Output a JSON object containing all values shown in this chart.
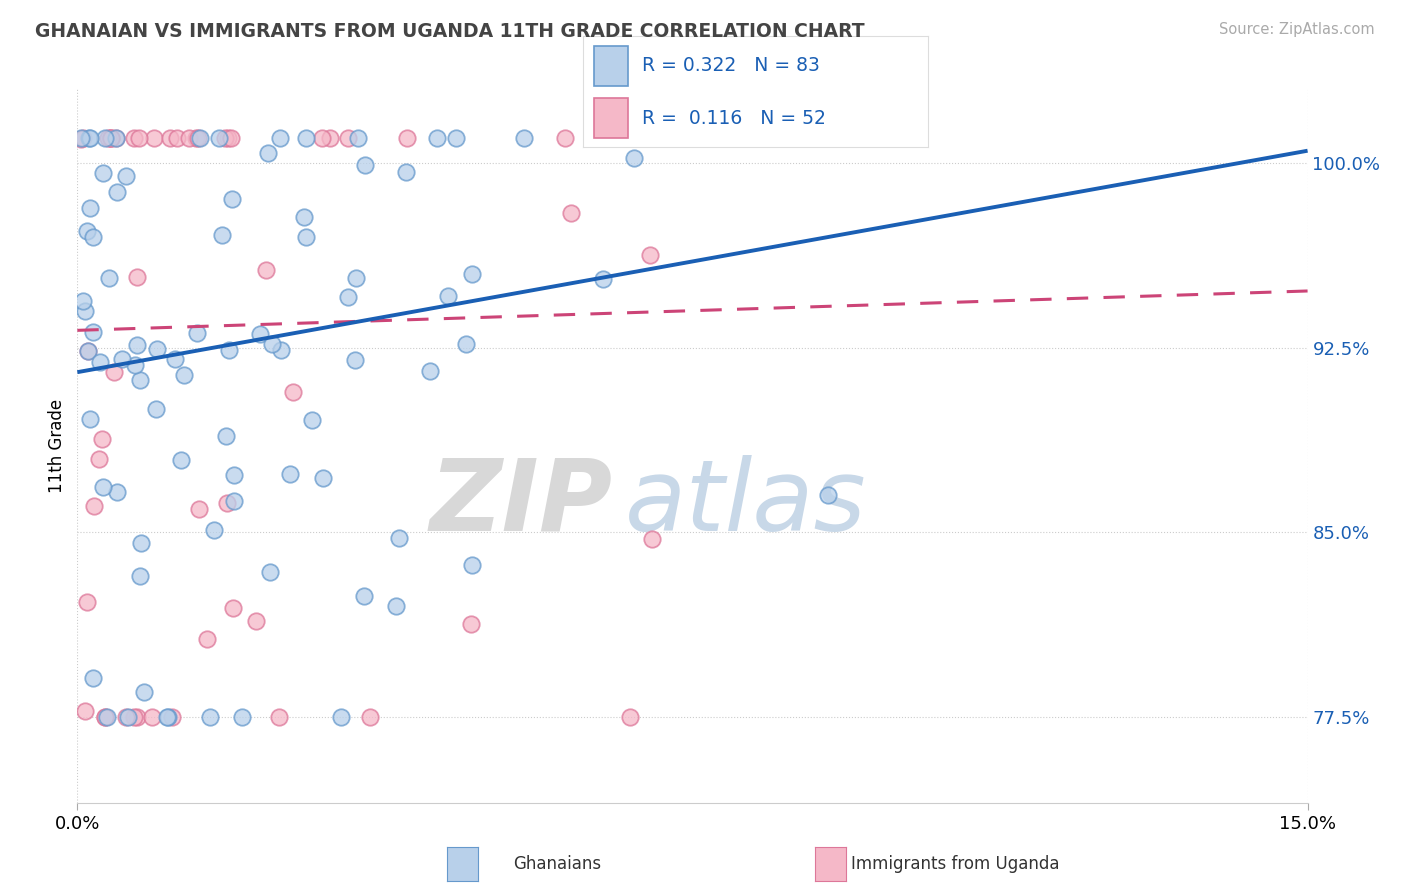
{
  "title": "GHANAIAN VS IMMIGRANTS FROM UGANDA 11TH GRADE CORRELATION CHART",
  "source": "Source: ZipAtlas.com",
  "ylabel_label": "11th Grade",
  "yticks": [
    77.5,
    85.0,
    92.5,
    100.0
  ],
  "ytick_labels": [
    "77.5%",
    "85.0%",
    "92.5%",
    "100.0%"
  ],
  "xmin": 0.0,
  "xmax": 15.0,
  "ymin": 74.0,
  "ymax": 103.0,
  "legend_line1": "R = 0.322   N = 83",
  "legend_line2": "R =  0.116   N = 52",
  "color_ghanaian_fill": "#b8d0ea",
  "color_ghanaian_edge": "#6699cc",
  "color_uganda_fill": "#f5b8c8",
  "color_uganda_edge": "#dd7799",
  "color_line_ghanaian": "#1a5fb4",
  "color_line_uganda": "#cc4477",
  "color_text_blue": "#1a5fb4",
  "legend_label1": "Ghanaians",
  "legend_label2": "Immigrants from Uganda",
  "watermark_ZIP": "ZIP",
  "watermark_atlas": "atlas",
  "line_g_x0": 0.0,
  "line_g_y0": 91.5,
  "line_g_x1": 15.0,
  "line_g_y1": 100.5,
  "line_u_x0": 0.0,
  "line_u_y0": 93.2,
  "line_u_x1": 15.0,
  "line_u_y1": 94.8
}
